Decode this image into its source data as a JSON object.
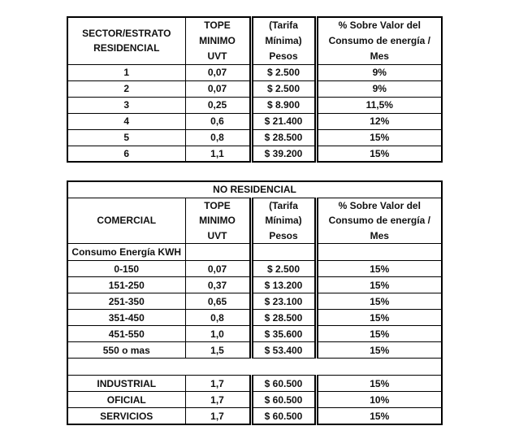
{
  "colors": {
    "background": "#ffffff",
    "text": "#111111",
    "border": "#000000"
  },
  "residential_table": {
    "headers": {
      "sector": "SECTOR/ESTRATO\nRESIDENCIAL",
      "tope": "TOPE\nMINIMO\nUVT",
      "tarifa": "(Tarifa\nMínima)\nPesos",
      "porcentaje": "% Sobre Valor del\nConsumo de energía /\nMes"
    },
    "rows": [
      {
        "estrato": "1",
        "tope_uvt": "0,07",
        "tarifa_pesos": "$ 2.500",
        "porcentaje": "9%"
      },
      {
        "estrato": "2",
        "tope_uvt": "0,07",
        "tarifa_pesos": "$ 2.500",
        "porcentaje": "9%"
      },
      {
        "estrato": "3",
        "tope_uvt": "0,25",
        "tarifa_pesos": "$ 8.900",
        "porcentaje": "11,5%"
      },
      {
        "estrato": "4",
        "tope_uvt": "0,6",
        "tarifa_pesos": "$ 21.400",
        "porcentaje": "12%"
      },
      {
        "estrato": "5",
        "tope_uvt": "0,8",
        "tarifa_pesos": "$ 28.500",
        "porcentaje": "15%"
      },
      {
        "estrato": "6",
        "tope_uvt": "1,1",
        "tarifa_pesos": "$ 39.200",
        "porcentaje": "15%"
      }
    ]
  },
  "non_residential_table": {
    "title": "NO RESIDENCIAL",
    "headers": {
      "comercial": "COMERCIAL",
      "tope": "TOPE\nMINIMO\nUVT",
      "tarifa": "(Tarifa\nMínima)\nPesos",
      "porcentaje": "% Sobre Valor del\nConsumo de energía /\nMes"
    },
    "subheader": "Consumo Energía KWH",
    "consumption_rows": [
      {
        "rango": "0-150",
        "tope_uvt": "0,07",
        "tarifa_pesos": "$ 2.500",
        "porcentaje": "15%"
      },
      {
        "rango": "151-250",
        "tope_uvt": "0,37",
        "tarifa_pesos": "$ 13.200",
        "porcentaje": "15%"
      },
      {
        "rango": "251-350",
        "tope_uvt": "0,65",
        "tarifa_pesos": "$ 23.100",
        "porcentaje": "15%"
      },
      {
        "rango": "351-450",
        "tope_uvt": "0,8",
        "tarifa_pesos": "$ 28.500",
        "porcentaje": "15%"
      },
      {
        "rango": "451-550",
        "tope_uvt": "1,0",
        "tarifa_pesos": "$ 35.600",
        "porcentaje": "15%"
      },
      {
        "rango": "550 o mas",
        "tope_uvt": "1,5",
        "tarifa_pesos": "$ 53.400",
        "porcentaje": "15%"
      }
    ],
    "category_rows": [
      {
        "categoria": "INDUSTRIAL",
        "tope_uvt": "1,7",
        "tarifa_pesos": "$ 60.500",
        "porcentaje": "15%"
      },
      {
        "categoria": "OFICIAL",
        "tope_uvt": "1,7",
        "tarifa_pesos": "$ 60.500",
        "porcentaje": "10%"
      },
      {
        "categoria": "SERVICIOS",
        "tope_uvt": "1,7",
        "tarifa_pesos": "$ 60.500",
        "porcentaje": "15%"
      }
    ]
  }
}
